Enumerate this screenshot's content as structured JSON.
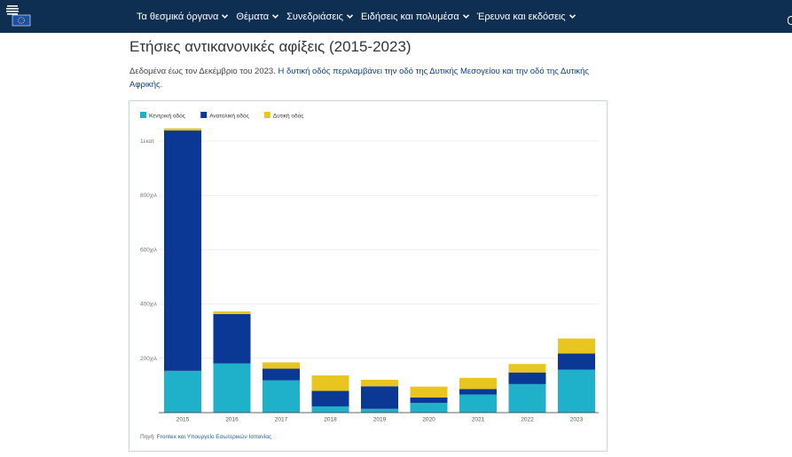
{
  "nav": {
    "items": [
      {
        "label": "Τα θεσμικά όργανα"
      },
      {
        "label": "Θέματα"
      },
      {
        "label": "Συνεδριάσεις"
      },
      {
        "label": "Ειδήσεις και πολυμέσα"
      },
      {
        "label": "Έρευνα και εκδόσεις"
      }
    ]
  },
  "page": {
    "title": "Ετήσιες αντικανονικές αφίξεις (2015-2023)",
    "desc_part1": "Δεδομένα έως τον Δεκέμβριο του 2023. ",
    "desc_part2": "Η δυτική οδός περιλαμβάνει την οδό της Δυτικής Μεσογείου και την οδό της Δυτικής Αφρικής."
  },
  "chart_data": {
    "type": "bar",
    "stacked": true,
    "categories": [
      "2015",
      "2016",
      "2017",
      "2018",
      "2019",
      "2020",
      "2021",
      "2022",
      "2023"
    ],
    "series": [
      {
        "name": "Κεντρική οδός",
        "color": "#1fb1c9",
        "values": [
          154,
          181,
          119,
          23,
          14,
          36,
          67,
          105,
          158
        ]
      },
      {
        "name": "Ανατολική οδός",
        "color": "#0b3795",
        "values": [
          885,
          182,
          43,
          57,
          83,
          20,
          20,
          43,
          60
        ]
      },
      {
        "name": "Δυτική οδός",
        "color": "#e8c51f",
        "values": [
          8,
          10,
          23,
          57,
          24,
          40,
          41,
          31,
          55
        ]
      }
    ],
    "yticks": [
      {
        "value": 200,
        "label": "200χιλ"
      },
      {
        "value": 400,
        "label": "400χιλ"
      },
      {
        "value": 600,
        "label": "600χιλ"
      },
      {
        "value": 800,
        "label": "800χιλ"
      },
      {
        "value": 1000,
        "label": "1εκατ"
      }
    ],
    "ylim": [
      0,
      1050
    ],
    "grid": true,
    "legend_position": "top-left",
    "source_label": "Πηγή: ",
    "source_text": "Frontex και Υπουργείο Εσωτερικών Ισπανίας"
  }
}
